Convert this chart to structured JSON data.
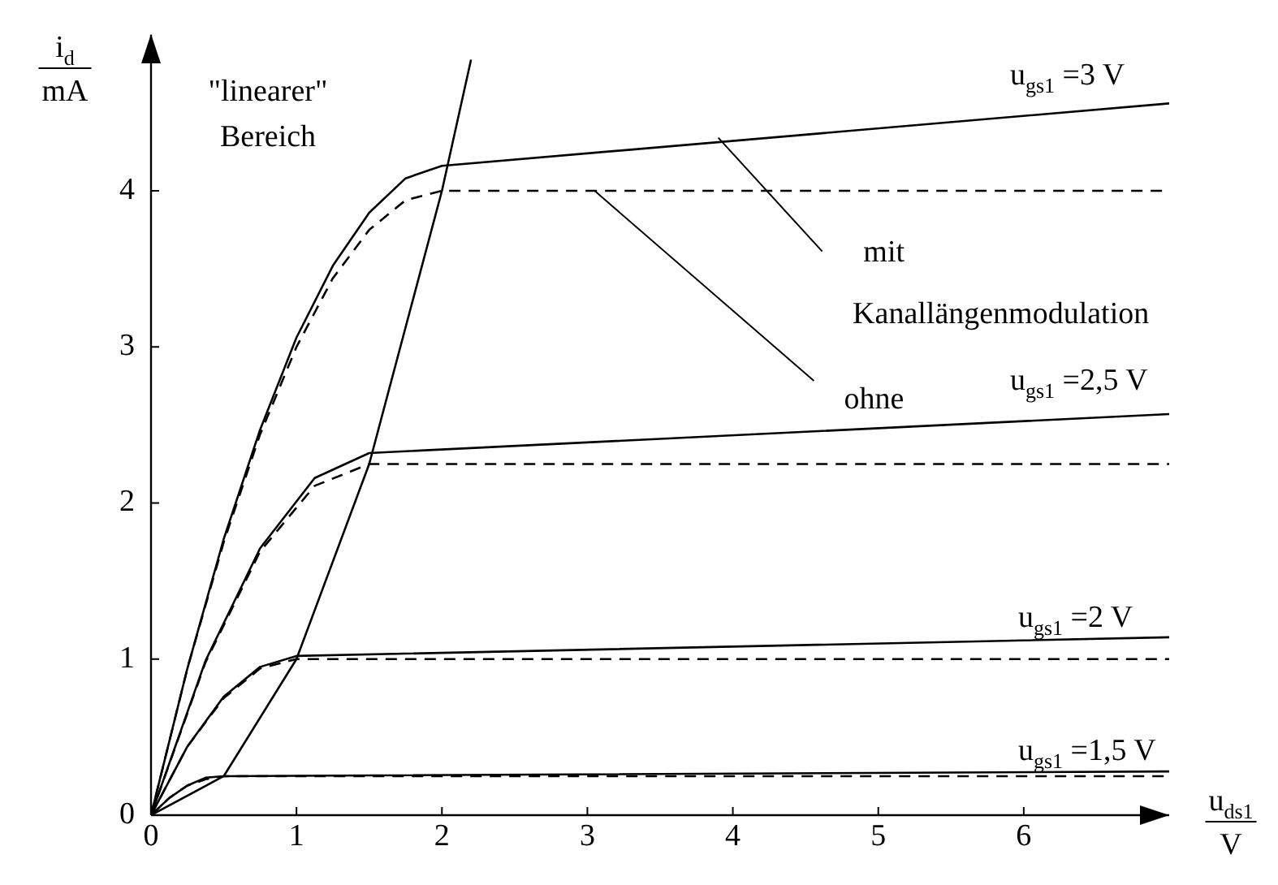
{
  "chart_data": {
    "type": "line",
    "xlabel": "u$_{ds1}$ V",
    "ylabel": "i$_{d}$ mA",
    "xlim": [
      0,
      7
    ],
    "ylim": [
      0,
      5
    ],
    "xticks": [
      0,
      1,
      2,
      3,
      4,
      5,
      6
    ],
    "yticks": [
      0,
      1,
      2,
      3,
      4
    ],
    "grid": false,
    "legend": false,
    "marker": "none",
    "series": [
      {
        "color": "#000000",
        "line_style": "solid",
        "x": [
          0,
          0.25,
          0.5,
          0.75,
          1,
          1.25,
          1.5,
          1.75,
          2,
          7
        ],
        "values": [
          0,
          0.94,
          1.77,
          2.47,
          3.06,
          3.52,
          3.86,
          4.08,
          4.16,
          4.56
        ]
      },
      {
        "color": "#000000",
        "line_style": "dashed",
        "x": [
          0,
          0.25,
          0.5,
          0.75,
          1,
          1.25,
          1.5,
          1.75,
          2,
          7
        ],
        "values": [
          0,
          0.94,
          1.75,
          2.44,
          3,
          3.44,
          3.75,
          3.94,
          4,
          4
        ]
      },
      {
        "color": "#000000",
        "line_style": "solid",
        "x": [
          0,
          0.375,
          0.75,
          1.125,
          1.5,
          7
        ],
        "values": [
          0,
          0.99,
          1.71,
          2.16,
          2.32,
          2.57
        ]
      },
      {
        "color": "#000000",
        "line_style": "dashed",
        "x": [
          0,
          0.375,
          0.75,
          1.125,
          1.5,
          7
        ],
        "values": [
          0,
          0.98,
          1.69,
          2.11,
          2.25,
          2.25
        ]
      },
      {
        "color": "#000000",
        "line_style": "solid",
        "x": [
          0,
          0.25,
          0.5,
          0.75,
          1,
          7
        ],
        "values": [
          0,
          0.44,
          0.76,
          0.95,
          1.02,
          1.14
        ]
      },
      {
        "color": "#000000",
        "line_style": "dashed",
        "x": [
          0,
          0.25,
          0.5,
          0.75,
          1,
          7
        ],
        "values": [
          0,
          0.44,
          0.75,
          0.94,
          1,
          1
        ]
      },
      {
        "color": "#000000",
        "line_style": "solid",
        "x": [
          0,
          0.125,
          0.25,
          0.375,
          0.5,
          7
        ],
        "values": [
          0,
          0.11,
          0.19,
          0.24,
          0.25,
          0.28
        ]
      },
      {
        "color": "#000000",
        "line_style": "dashed",
        "x": [
          0,
          0.125,
          0.25,
          0.375,
          0.5,
          7
        ],
        "values": [
          0,
          0.11,
          0.19,
          0.23,
          0.25,
          0.25
        ]
      },
      {
        "color": "#000000",
        "line_style": "solid",
        "x": [
          0,
          0.5,
          1,
          1.5,
          2,
          2.2
        ],
        "values": [
          0,
          0.25,
          1,
          2.25,
          4,
          4.84
        ]
      }
    ],
    "annotations": [
      "\"linearer\" Bereich",
      {
        "text": "mit Kanallängenmodulation",
        "x": 3.9,
        "y": 4.34
      },
      {
        "text": "ohne",
        "x": 3.05,
        "y": 4
      },
      "u$_{gs1}$ =3 V",
      "u$_{gs1}$ =2,5 V",
      "u$_{gs1}$ =2 V",
      "u$_{gs1}$ =1,5 V"
    ]
  }
}
